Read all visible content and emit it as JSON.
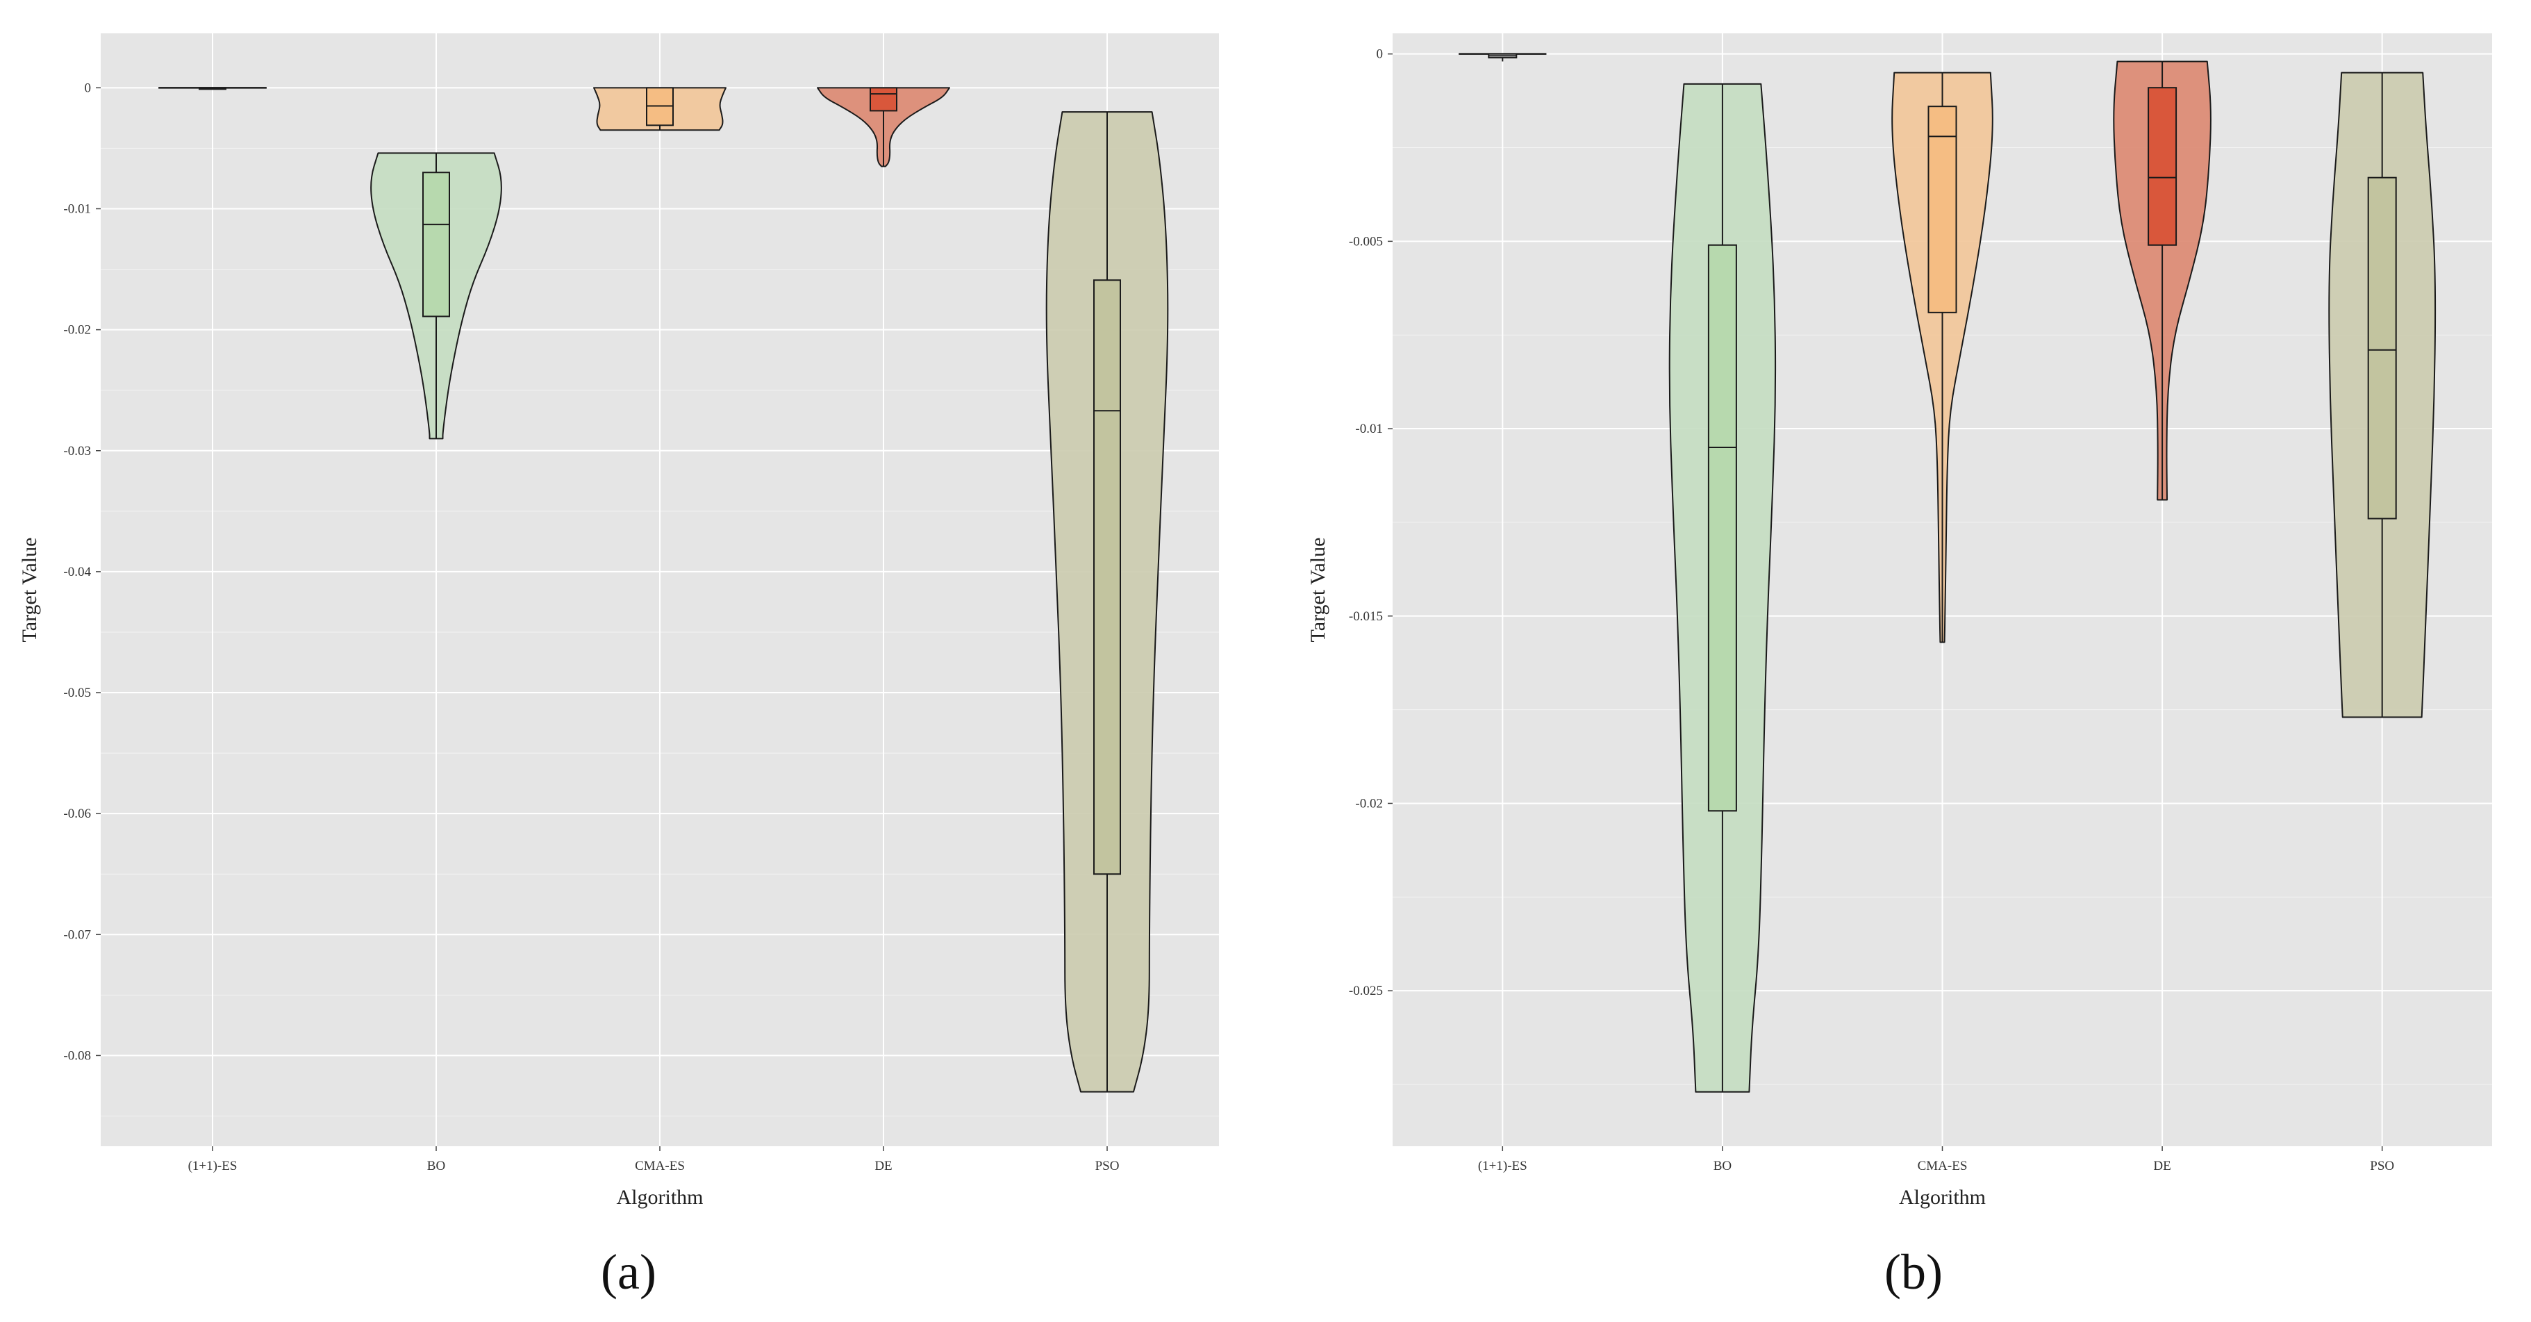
{
  "colors": {
    "panel_background": "#e5e5e5",
    "grid": "#ffffff",
    "outline": "#1a1a1a",
    "series": {
      "(1+1)-ES": "#dcdcdc",
      "BO": "#c6ddc2",
      "CMA-ES": "#f2c79a",
      "DE": "#dc8a73",
      "PSO": "#ccccb0"
    },
    "box": {
      "(1+1)-ES": "#dcdcdc",
      "BO": "#b7d9ae",
      "CMA-ES": "#f5bd83",
      "DE": "#d9573b",
      "PSO": "#c2c49f"
    }
  },
  "chart_data": [
    {
      "id": "a",
      "type": "violin",
      "caption": "(a)",
      "xlabel": "Algorithm",
      "ylabel": "Target Value",
      "ylim": [
        -0.0875,
        0.0045
      ],
      "yticks": [
        0,
        -0.01,
        -0.02,
        -0.03,
        -0.04,
        -0.05,
        -0.06,
        -0.07,
        -0.08
      ],
      "ytick_labels": [
        "0",
        "-0.01",
        "-0.02",
        "-0.03",
        "-0.04",
        "-0.05",
        "-0.06",
        "-0.07",
        "-0.08"
      ],
      "categories": [
        "(1+1)-ES",
        "BO",
        "CMA-ES",
        "DE",
        "PSO"
      ],
      "grid": true,
      "series": [
        {
          "name": "(1+1)-ES",
          "min": 0,
          "q1": 0,
          "median": 0,
          "q3": 0,
          "max": 0,
          "profile": [
            [
              0,
              1.0
            ]
          ]
        },
        {
          "name": "BO",
          "min": -0.029,
          "q1": -0.0189,
          "median": -0.0113,
          "q3": -0.007,
          "max": -0.0054,
          "profile": [
            [
              -0.0054,
              0.88
            ],
            [
              -0.0075,
              1.0
            ],
            [
              -0.01,
              0.97
            ],
            [
              -0.013,
              0.8
            ],
            [
              -0.016,
              0.56
            ],
            [
              -0.019,
              0.4
            ],
            [
              -0.022,
              0.28
            ],
            [
              -0.025,
              0.18
            ],
            [
              -0.0285,
              0.1
            ],
            [
              -0.029,
              0.1
            ]
          ]
        },
        {
          "name": "CMA-ES",
          "min": -0.0035,
          "q1": -0.0031,
          "median": -0.0015,
          "q3": 0,
          "max": 0,
          "profile": [
            [
              0,
              1.0
            ],
            [
              -0.0006,
              0.95
            ],
            [
              -0.0014,
              0.9
            ],
            [
              -0.0022,
              0.94
            ],
            [
              -0.003,
              0.96
            ],
            [
              -0.0035,
              0.9
            ]
          ]
        },
        {
          "name": "DE",
          "min": -0.0065,
          "q1": -0.0019,
          "median": -0.0005,
          "q3": 0,
          "max": 0,
          "profile": [
            [
              0,
              1.0
            ],
            [
              -0.0008,
              0.9
            ],
            [
              -0.0016,
              0.62
            ],
            [
              -0.0026,
              0.32
            ],
            [
              -0.0036,
              0.15
            ],
            [
              -0.0045,
              0.09
            ],
            [
              -0.0055,
              0.1
            ],
            [
              -0.0062,
              0.08
            ],
            [
              -0.0065,
              0.03
            ]
          ]
        },
        {
          "name": "PSO",
          "min": -0.083,
          "q1": -0.065,
          "median": -0.0267,
          "q3": -0.0159,
          "max": -0.002,
          "profile": [
            [
              -0.002,
              0.68
            ],
            [
              -0.006,
              0.8
            ],
            [
              -0.012,
              0.9
            ],
            [
              -0.02,
              0.93
            ],
            [
              -0.03,
              0.85
            ],
            [
              -0.04,
              0.77
            ],
            [
              -0.05,
              0.7
            ],
            [
              -0.06,
              0.66
            ],
            [
              -0.07,
              0.64
            ],
            [
              -0.076,
              0.64
            ],
            [
              -0.08,
              0.55
            ],
            [
              -0.083,
              0.4
            ]
          ]
        }
      ]
    },
    {
      "id": "b",
      "type": "violin",
      "caption": "(b)",
      "xlabel": "Algorithm",
      "ylabel": "Target Value",
      "ylim": [
        -0.02915,
        0.00055
      ],
      "yticks": [
        0,
        -0.005,
        -0.01,
        -0.015,
        -0.02,
        -0.025
      ],
      "ytick_labels": [
        "0",
        "-0.005",
        "-0.01",
        "-0.015",
        "-0.02",
        "-0.025"
      ],
      "categories": [
        "(1+1)-ES",
        "BO",
        "CMA-ES",
        "DE",
        "PSO"
      ],
      "grid": true,
      "series": [
        {
          "name": "(1+1)-ES",
          "min": -0.0002,
          "q1": -0.0001,
          "median": -5e-05,
          "q3": 0,
          "max": 0,
          "profile": [
            [
              0,
              1.0
            ]
          ]
        },
        {
          "name": "BO",
          "min": -0.0277,
          "q1": -0.0202,
          "median": -0.0105,
          "q3": -0.0051,
          "max": -0.0008,
          "profile": [
            [
              -0.0008,
              0.72
            ],
            [
              -0.003,
              0.84
            ],
            [
              -0.006,
              0.97
            ],
            [
              -0.009,
              1.0
            ],
            [
              -0.012,
              0.93
            ],
            [
              -0.015,
              0.84
            ],
            [
              -0.018,
              0.78
            ],
            [
              -0.021,
              0.74
            ],
            [
              -0.024,
              0.68
            ],
            [
              -0.026,
              0.55
            ],
            [
              -0.0277,
              0.5
            ]
          ]
        },
        {
          "name": "CMA-ES",
          "min": -0.0157,
          "q1": -0.0069,
          "median": -0.0022,
          "q3": -0.0014,
          "max": -0.0005,
          "profile": [
            [
              -0.0005,
              0.9
            ],
            [
              -0.002,
              0.96
            ],
            [
              -0.004,
              0.82
            ],
            [
              -0.006,
              0.6
            ],
            [
              -0.008,
              0.34
            ],
            [
              -0.0095,
              0.14
            ],
            [
              -0.011,
              0.09
            ],
            [
              -0.013,
              0.07
            ],
            [
              -0.015,
              0.05
            ],
            [
              -0.0157,
              0.04
            ]
          ]
        },
        {
          "name": "DE",
          "min": -0.0119,
          "q1": -0.0051,
          "median": -0.0033,
          "q3": -0.0009,
          "max": -0.0002,
          "profile": [
            [
              -0.0002,
              0.84
            ],
            [
              -0.0015,
              0.92
            ],
            [
              -0.003,
              0.88
            ],
            [
              -0.0045,
              0.78
            ],
            [
              -0.006,
              0.52
            ],
            [
              -0.0075,
              0.22
            ],
            [
              -0.009,
              0.1
            ],
            [
              -0.0105,
              0.08
            ],
            [
              -0.0119,
              0.09
            ]
          ]
        },
        {
          "name": "PSO",
          "min": -0.0177,
          "q1": -0.0124,
          "median": -0.0079,
          "q3": -0.0033,
          "max": -0.0005,
          "profile": [
            [
              -0.0005,
              0.76
            ],
            [
              -0.002,
              0.82
            ],
            [
              -0.004,
              0.93
            ],
            [
              -0.006,
              1.0
            ],
            [
              -0.009,
              0.98
            ],
            [
              -0.012,
              0.9
            ],
            [
              -0.015,
              0.82
            ],
            [
              -0.0177,
              0.74
            ]
          ]
        }
      ]
    }
  ]
}
